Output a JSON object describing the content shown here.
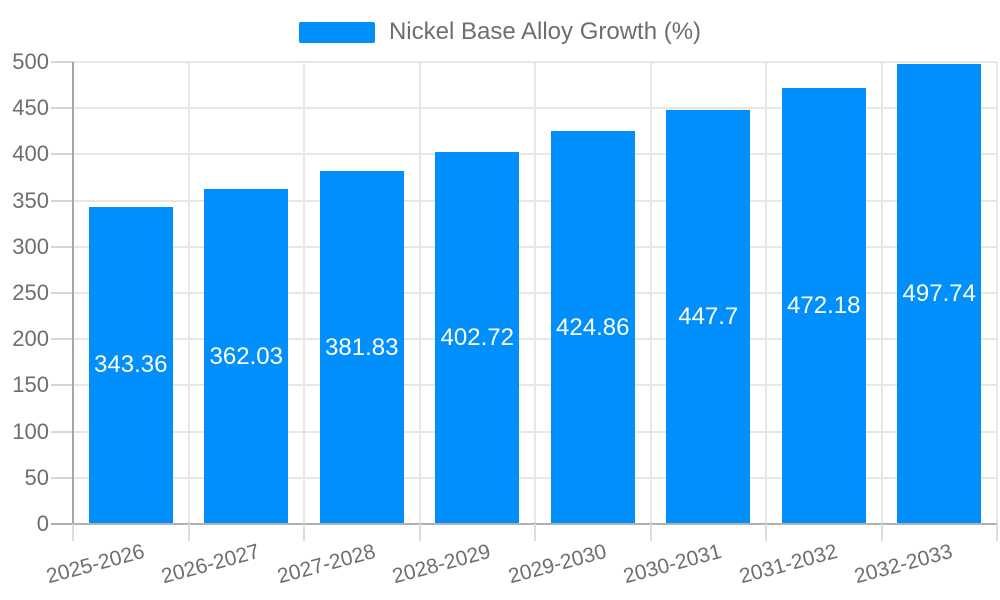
{
  "legend": {
    "label": "Nickel Base Alloy Growth (%)"
  },
  "colors": {
    "bar": "#008FFB",
    "grid": "#e7e7e7",
    "axis": "#b0b0b0",
    "tick_label": "#6e6e6e",
    "value_label": "#ffffff"
  },
  "chart_data": {
    "type": "bar",
    "title": "Nickel Base Alloy Growth (%)",
    "categories": [
      "2025-2026",
      "2026-2027",
      "2027-2028",
      "2028-2029",
      "2029-2030",
      "2030-2031",
      "2031-2032",
      "2032-2033"
    ],
    "values": [
      343.36,
      362.03,
      381.83,
      402.72,
      424.86,
      447.7,
      472.18,
      497.74
    ],
    "value_labels": [
      "343.36",
      "362.03",
      "381.83",
      "402.72",
      "424.86",
      "447.7",
      "472.18",
      "497.74"
    ],
    "series": [
      {
        "name": "Nickel Base Alloy Growth (%)",
        "values": [
          343.36,
          362.03,
          381.83,
          402.72,
          424.86,
          447.7,
          472.18,
          497.74
        ]
      }
    ],
    "xlabel": "",
    "ylabel": "",
    "ylim": [
      0,
      500
    ],
    "yticks": [
      0,
      50,
      100,
      150,
      200,
      250,
      300,
      350,
      400,
      450,
      500
    ],
    "grid": true,
    "legend_position": "top",
    "bar_color": "#008FFB",
    "value_label_color": "#ffffff"
  }
}
